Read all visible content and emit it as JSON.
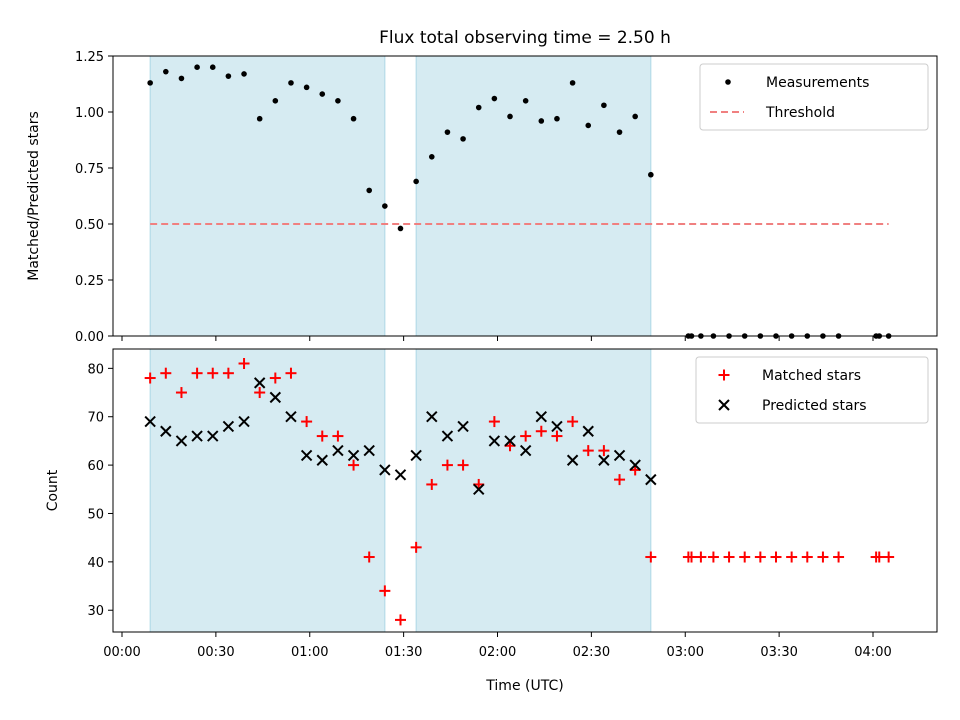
{
  "chart_data": {
    "title": "Flux total observing time = 2.50 h",
    "xlabel": "Time (UTC)",
    "x_range": [
      "00:00",
      "04:10"
    ],
    "x_ticks": [
      "00:00",
      "00:30",
      "01:00",
      "01:30",
      "02:00",
      "02:30",
      "03:00",
      "03:30",
      "04:00"
    ],
    "shaded_intervals": [
      [
        "00:09",
        "01:24"
      ],
      [
        "01:34",
        "02:49"
      ]
    ],
    "shade_color": "#add8e6",
    "panels": [
      {
        "type": "scatter",
        "ylabel": "Matched/Predicted stars",
        "ylim": [
          0,
          1.25
        ],
        "y_ticks": [
          "0.00",
          "0.25",
          "0.50",
          "0.75",
          "1.00",
          "1.25"
        ],
        "legend_position": "top-right",
        "series": [
          {
            "name": "Measurements",
            "marker": "dot",
            "color": "#000000",
            "points": [
              [
                "00:09",
                1.13
              ],
              [
                "00:14",
                1.18
              ],
              [
                "00:19",
                1.15
              ],
              [
                "00:24",
                1.2
              ],
              [
                "00:29",
                1.2
              ],
              [
                "00:34",
                1.16
              ],
              [
                "00:39",
                1.17
              ],
              [
                "00:44",
                0.97
              ],
              [
                "00:49",
                1.05
              ],
              [
                "00:54",
                1.13
              ],
              [
                "00:59",
                1.11
              ],
              [
                "01:04",
                1.08
              ],
              [
                "01:09",
                1.05
              ],
              [
                "01:14",
                0.97
              ],
              [
                "01:19",
                0.65
              ],
              [
                "01:24",
                0.58
              ],
              [
                "01:29",
                0.48
              ],
              [
                "01:34",
                0.69
              ],
              [
                "01:39",
                0.8
              ],
              [
                "01:44",
                0.91
              ],
              [
                "01:49",
                0.88
              ],
              [
                "01:54",
                1.02
              ],
              [
                "01:59",
                1.06
              ],
              [
                "02:04",
                0.98
              ],
              [
                "02:09",
                1.05
              ],
              [
                "02:14",
                0.96
              ],
              [
                "02:19",
                0.97
              ],
              [
                "02:24",
                1.13
              ],
              [
                "02:29",
                0.94
              ],
              [
                "02:34",
                1.03
              ],
              [
                "02:39",
                0.91
              ],
              [
                "02:44",
                0.98
              ],
              [
                "02:49",
                0.72
              ],
              [
                "03:01",
                0.0
              ],
              [
                "03:02",
                0.0
              ],
              [
                "03:05",
                0.0
              ],
              [
                "03:09",
                0.0
              ],
              [
                "03:14",
                0.0
              ],
              [
                "03:19",
                0.0
              ],
              [
                "03:24",
                0.0
              ],
              [
                "03:29",
                0.0
              ],
              [
                "03:34",
                0.0
              ],
              [
                "03:39",
                0.0
              ],
              [
                "03:44",
                0.0
              ],
              [
                "03:49",
                0.0
              ],
              [
                "04:01",
                0.0
              ],
              [
                "04:02",
                0.0
              ],
              [
                "04:05",
                0.0
              ]
            ]
          },
          {
            "name": "Threshold",
            "marker": "dashed-line",
            "color": "#f08080",
            "points": [
              [
                "00:09",
                0.5
              ],
              [
                "04:05",
                0.5
              ]
            ]
          }
        ]
      },
      {
        "type": "scatter",
        "ylabel": "Count",
        "ylim": [
          25.5,
          84
        ],
        "y_ticks": [
          "30",
          "40",
          "50",
          "60",
          "70",
          "80"
        ],
        "legend_position": "top-right",
        "series": [
          {
            "name": "Matched stars",
            "marker": "plus",
            "color": "#ff0000",
            "points": [
              [
                "00:09",
                78
              ],
              [
                "00:14",
                79
              ],
              [
                "00:19",
                75
              ],
              [
                "00:24",
                79
              ],
              [
                "00:29",
                79
              ],
              [
                "00:34",
                79
              ],
              [
                "00:39",
                81
              ],
              [
                "00:44",
                75
              ],
              [
                "00:49",
                78
              ],
              [
                "00:54",
                79
              ],
              [
                "00:59",
                69
              ],
              [
                "01:04",
                66
              ],
              [
                "01:09",
                66
              ],
              [
                "01:14",
                60
              ],
              [
                "01:19",
                41
              ],
              [
                "01:24",
                34
              ],
              [
                "01:29",
                28
              ],
              [
                "01:34",
                43
              ],
              [
                "01:39",
                56
              ],
              [
                "01:44",
                60
              ],
              [
                "01:49",
                60
              ],
              [
                "01:54",
                56
              ],
              [
                "01:59",
                69
              ],
              [
                "02:04",
                64
              ],
              [
                "02:09",
                66
              ],
              [
                "02:14",
                67
              ],
              [
                "02:19",
                66
              ],
              [
                "02:24",
                69
              ],
              [
                "02:29",
                63
              ],
              [
                "02:34",
                63
              ],
              [
                "02:39",
                57
              ],
              [
                "02:44",
                59
              ],
              [
                "02:49",
                41
              ],
              [
                "03:01",
                41
              ],
              [
                "03:02",
                41
              ],
              [
                "03:05",
                41
              ],
              [
                "03:09",
                41
              ],
              [
                "03:14",
                41
              ],
              [
                "03:19",
                41
              ],
              [
                "03:24",
                41
              ],
              [
                "03:29",
                41
              ],
              [
                "03:34",
                41
              ],
              [
                "03:39",
                41
              ],
              [
                "03:44",
                41
              ],
              [
                "03:49",
                41
              ],
              [
                "04:01",
                41
              ],
              [
                "04:02",
                41
              ],
              [
                "04:05",
                41
              ]
            ]
          },
          {
            "name": "Predicted stars",
            "marker": "x",
            "color": "#000000",
            "points": [
              [
                "00:09",
                69
              ],
              [
                "00:14",
                67
              ],
              [
                "00:19",
                65
              ],
              [
                "00:24",
                66
              ],
              [
                "00:29",
                66
              ],
              [
                "00:34",
                68
              ],
              [
                "00:39",
                69
              ],
              [
                "00:44",
                77
              ],
              [
                "00:49",
                74
              ],
              [
                "00:54",
                70
              ],
              [
                "00:59",
                62
              ],
              [
                "01:04",
                61
              ],
              [
                "01:09",
                63
              ],
              [
                "01:14",
                62
              ],
              [
                "01:19",
                63
              ],
              [
                "01:24",
                59
              ],
              [
                "01:29",
                58
              ],
              [
                "01:34",
                62
              ],
              [
                "01:39",
                70
              ],
              [
                "01:44",
                66
              ],
              [
                "01:49",
                68
              ],
              [
                "01:54",
                55
              ],
              [
                "01:59",
                65
              ],
              [
                "02:04",
                65
              ],
              [
                "02:09",
                63
              ],
              [
                "02:14",
                70
              ],
              [
                "02:19",
                68
              ],
              [
                "02:24",
                61
              ],
              [
                "02:29",
                67
              ],
              [
                "02:34",
                61
              ],
              [
                "02:39",
                62
              ],
              [
                "02:44",
                60
              ],
              [
                "02:49",
                57
              ]
            ]
          }
        ]
      }
    ]
  }
}
